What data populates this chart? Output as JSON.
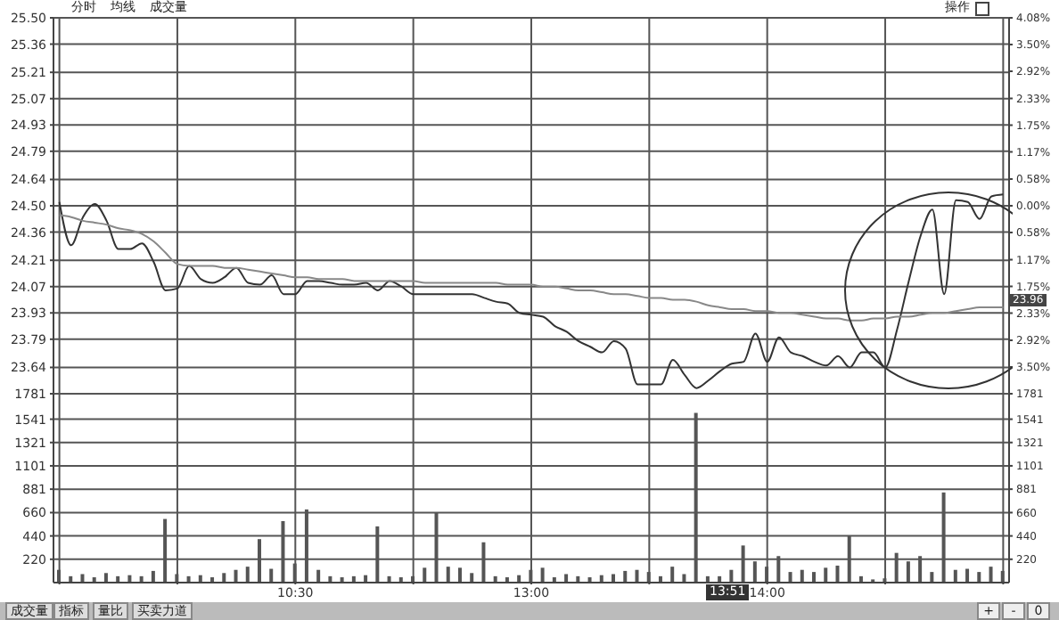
{
  "chart_data": [
    {
      "type": "line",
      "tick_labels": "y",
      "grid": true,
      "marker": "none",
      "line_style": "solid",
      "categories": [
        null,
        null,
        null,
        null,
        null,
        null,
        null,
        null,
        null,
        null,
        null,
        null,
        null,
        null,
        null,
        null,
        null,
        null,
        null,
        null,
        null,
        null,
        null,
        null,
        null,
        null,
        null,
        null,
        null,
        null,
        null,
        null,
        null,
        null,
        null,
        null,
        null,
        null,
        null,
        null,
        null,
        null,
        null,
        null,
        null,
        null,
        null,
        null,
        null,
        null,
        null,
        null,
        null,
        null,
        null,
        null,
        null,
        null,
        null,
        null,
        null,
        null,
        null,
        null,
        null,
        null,
        null,
        null,
        null,
        null,
        null,
        null,
        null,
        null,
        null,
        null,
        null,
        null,
        null,
        null,
        null
      ],
      "ylim": [
        23.5,
        25.5
      ],
      "yticks": [
        {
          "value": 25.5,
          "label": "25.50"
        },
        25.36,
        25.21,
        25.07,
        24.93,
        24.79,
        24.64,
        {
          "value": 24.5,
          "label": "24.50"
        },
        24.36,
        24.21,
        24.07,
        23.93,
        23.79,
        23.64
      ],
      "y2lim": [
        -4.08,
        4.08
      ],
      "y2ticks": [
        {
          "value": 4.08,
          "label": "4.08%"
        },
        {
          "value": 3.5,
          "label": "3.50%"
        },
        {
          "value": 2.92,
          "label": "2.92%"
        },
        {
          "value": 2.33,
          "label": "2.33%"
        },
        {
          "value": 1.75,
          "label": "1.75%"
        },
        {
          "value": 1.17,
          "label": "1.17%"
        },
        {
          "value": 0.58,
          "label": "0.58%"
        },
        {
          "value": 0,
          "label": "0.00%"
        },
        {
          "value": -0.58,
          "label": "0.58%"
        },
        {
          "value": -1.17,
          "label": "1.17%"
        },
        {
          "value": -1.75,
          "label": "1.75%"
        },
        {
          "value": -2.33,
          "label": "2.33%"
        },
        {
          "value": -2.92,
          "label": "2.92%"
        },
        {
          "value": -3.5,
          "label": "3.50%"
        }
      ],
      "series": [
        {
          "color": "#333333",
          "values": [
            24.52,
            24.29,
            24.44,
            24.51,
            24.42,
            24.27,
            24.27,
            24.3,
            24.2,
            24.05,
            24.06,
            24.18,
            24.11,
            24.09,
            24.12,
            24.17,
            24.09,
            24.08,
            24.13,
            24.03,
            24.03,
            24.1,
            24.1,
            24.09,
            24.08,
            24.08,
            24.09,
            24.05,
            24.1,
            24.07,
            24.03,
            24.03,
            24.03,
            24.03,
            24.03,
            24.03,
            24.01,
            23.99,
            23.98,
            23.93,
            23.92,
            23.91,
            23.86,
            23.83,
            23.78,
            23.75,
            23.72,
            23.78,
            23.74,
            23.55,
            23.55,
            23.55,
            23.68,
            23.6,
            23.53,
            23.57,
            23.62,
            23.66,
            23.67,
            23.82,
            23.67,
            23.8,
            23.72,
            23.7,
            23.67,
            23.65,
            23.7,
            23.64,
            23.72,
            23.72,
            23.64,
            23.84,
            24.1,
            24.34,
            24.48,
            24.03,
            24.53,
            24.52,
            24.43,
            24.55,
            24.56
          ]
        },
        {
          "color": "#888888",
          "values": [
            24.45,
            24.44,
            24.42,
            24.41,
            24.4,
            24.38,
            24.37,
            24.35,
            24.31,
            24.25,
            24.19,
            24.18,
            24.18,
            24.18,
            24.17,
            24.17,
            24.16,
            24.15,
            24.14,
            24.13,
            24.12,
            24.12,
            24.11,
            24.11,
            24.11,
            24.1,
            24.1,
            24.1,
            24.1,
            24.1,
            24.1,
            24.09,
            24.09,
            24.09,
            24.09,
            24.09,
            24.09,
            24.09,
            24.08,
            24.08,
            24.08,
            24.07,
            24.07,
            24.06,
            24.05,
            24.05,
            24.04,
            24.03,
            24.03,
            24.02,
            24.01,
            24.01,
            24.0,
            24.0,
            23.99,
            23.97,
            23.96,
            23.95,
            23.95,
            23.94,
            23.94,
            23.93,
            23.93,
            23.92,
            23.91,
            23.9,
            23.9,
            23.89,
            23.89,
            23.9,
            23.9,
            23.91,
            23.91,
            23.92,
            23.93,
            23.93,
            23.94,
            23.95,
            23.96,
            23.96,
            23.96
          ]
        }
      ],
      "annotations": [
        "分时",
        "均线",
        "成交量",
        "操作",
        "23.96"
      ]
    },
    {
      "type": "bar",
      "grid": true,
      "categories": [
        null,
        null,
        null,
        null,
        null,
        null,
        null,
        null,
        null,
        null,
        null,
        null,
        null,
        null,
        null,
        null,
        null,
        null,
        null,
        null,
        "10:30",
        null,
        null,
        null,
        null,
        null,
        null,
        null,
        null,
        null,
        null,
        null,
        null,
        null,
        null,
        null,
        null,
        null,
        null,
        null,
        "13:00",
        null,
        null,
        null,
        null,
        null,
        null,
        null,
        null,
        null,
        null,
        null,
        null,
        null,
        null,
        null,
        null,
        null,
        null,
        null,
        "14:00",
        null,
        null,
        null,
        null,
        null,
        null,
        null,
        null,
        null,
        null,
        null,
        null,
        null,
        null,
        null,
        null,
        null,
        null,
        null,
        null
      ],
      "ylim": [
        0,
        1781
      ],
      "yticks": [
        1781,
        1541,
        1321,
        1101,
        881,
        660,
        440,
        220
      ],
      "y2lim": [
        0,
        1781
      ],
      "y2ticks": [
        1781,
        1541,
        1321,
        1101,
        881,
        660,
        440,
        220
      ],
      "series": [
        {
          "color": "#555555",
          "values": [
            120,
            60,
            80,
            50,
            90,
            60,
            70,
            60,
            110,
            600,
            80,
            60,
            70,
            50,
            90,
            120,
            150,
            410,
            130,
            580,
            180,
            690,
            120,
            60,
            50,
            60,
            70,
            530,
            60,
            50,
            60,
            140,
            660,
            150,
            140,
            90,
            380,
            60,
            50,
            70,
            120,
            140,
            50,
            80,
            60,
            50,
            70,
            80,
            110,
            120,
            100,
            60,
            150,
            80,
            1600,
            60,
            60,
            120,
            350,
            200,
            150,
            250,
            100,
            120,
            100,
            140,
            160,
            440,
            60,
            30,
            40,
            280,
            200,
            250,
            100,
            850,
            120,
            130,
            100,
            150,
            110
          ]
        }
      ],
      "annotations": [
        "13:51",
        "成交量",
        "指标",
        "量比",
        "买卖力道",
        "+",
        "-",
        "0"
      ]
    }
  ]
}
